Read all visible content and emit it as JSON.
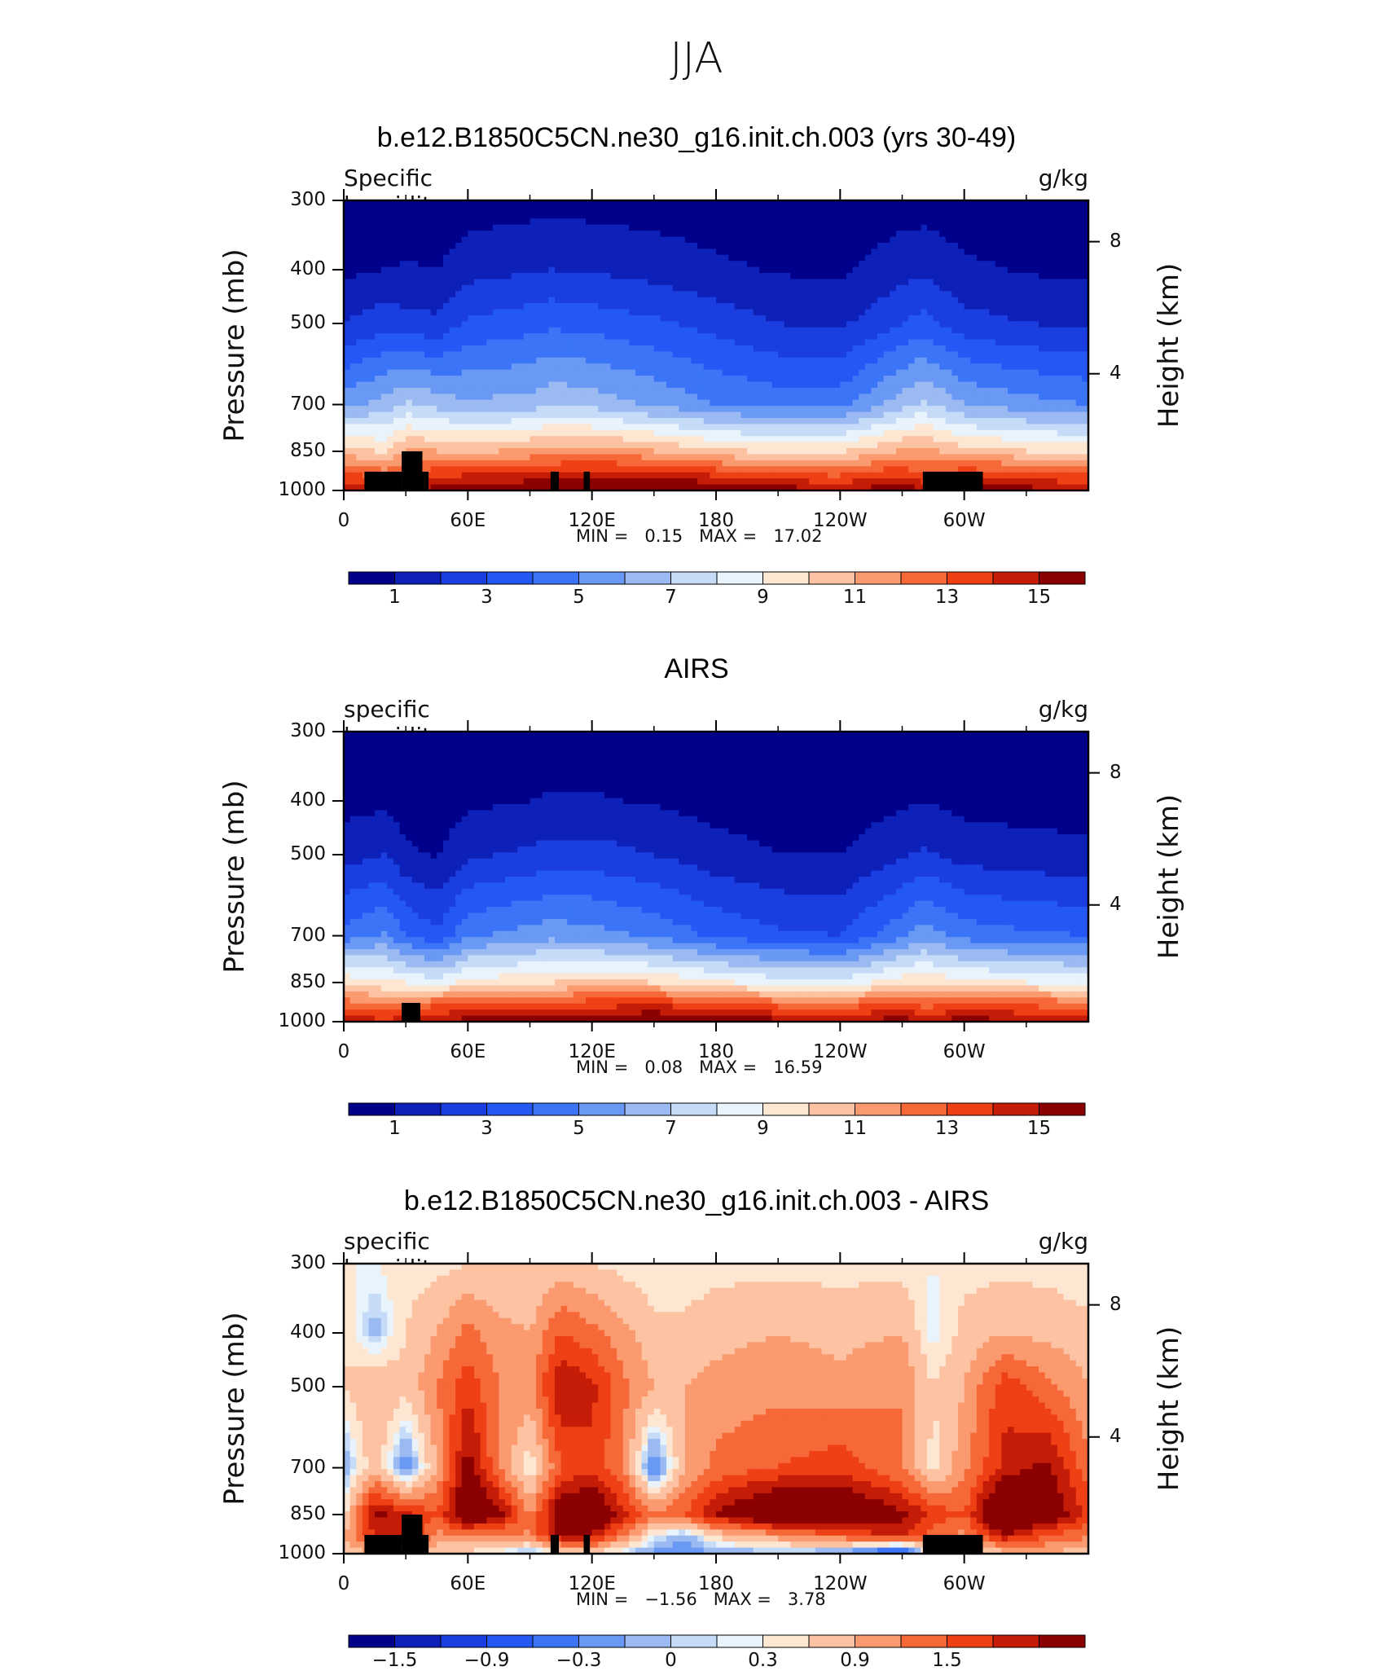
{
  "figure": {
    "title": "JJA"
  },
  "chart_data": [
    {
      "type": "heatmap",
      "title": "b.e12.B1850C5CN.ne30_g16.init.ch.003 (yrs 30-49)",
      "variable_label": "Specific humidity",
      "units": "g/kg",
      "ylabel": "Pressure (mb)",
      "ylabel_right": "Height (km)",
      "x_ticks": [
        "0",
        "60E",
        "120E",
        "180",
        "120W",
        "60W"
      ],
      "x_range": [
        0,
        360
      ],
      "y_ticks": [
        "300",
        "400",
        "500",
        "700",
        "850",
        "1000"
      ],
      "y_range": [
        1000,
        300
      ],
      "height_ticks": [
        "8",
        "4"
      ],
      "min_label": "MIN =",
      "min_value": "0.15",
      "max_label": "MAX =",
      "max_value": "17.02",
      "colorbar_labels": [
        "1",
        "3",
        "5",
        "7",
        "9",
        "11",
        "13",
        "15"
      ],
      "levels": [
        1,
        2,
        3,
        4,
        5,
        6,
        7,
        8,
        9,
        10,
        11,
        12,
        13,
        14,
        15
      ],
      "colors": [
        "#00008b",
        "#0d20b8",
        "#1a3ee0",
        "#2458f5",
        "#3b74f7",
        "#6a98f5",
        "#9bbaf2",
        "#c6dbf8",
        "#e8f3fc",
        "#fde6d2",
        "#fcc2a2",
        "#fa9a6e",
        "#f76838",
        "#ef3f14",
        "#c51c08",
        "#8b0000"
      ],
      "field": {
        "lon": [
          0,
          20,
          30,
          45,
          60,
          90,
          100,
          120,
          150,
          180,
          210,
          240,
          270,
          280,
          300,
          330,
          360
        ],
        "rows": [
          {
            "p": 1000,
            "q": [
              15.0,
              14.6,
              14.8,
              15.4,
              15.8,
              16.2,
              16.3,
              16.4,
              16.6,
              16.2,
              15.6,
              15.2,
              15.6,
              15.2,
              16.0,
              15.4,
              14.6
            ]
          },
          {
            "p": 925,
            "q": [
              12.8,
              12.2,
              12.8,
              13.4,
              13.6,
              13.8,
              13.9,
              14.2,
              14.1,
              13.4,
              12.6,
              12.4,
              13.6,
              12.6,
              13.4,
              13.2,
              12.6
            ]
          },
          {
            "p": 850,
            "q": [
              10.6,
              9.8,
              11.2,
              11.0,
              10.8,
              11.2,
              11.6,
              11.6,
              11.0,
              10.2,
              9.8,
              9.9,
              11.2,
              11.4,
              10.4,
              10.0,
              9.6
            ]
          },
          {
            "p": 700,
            "q": [
              5.6,
              6.4,
              7.2,
              6.6,
              6.2,
              6.4,
              6.8,
              6.6,
              5.8,
              5.0,
              4.6,
              4.6,
              6.6,
              7.2,
              6.0,
              5.4,
              5.0
            ]
          },
          {
            "p": 500,
            "q": [
              2.0,
              2.6,
              2.4,
              2.2,
              3.2,
              3.6,
              3.8,
              3.6,
              3.2,
              2.6,
              2.0,
              1.8,
              3.0,
              3.4,
              2.4,
              2.0,
              1.8
            ]
          },
          {
            "p": 400,
            "q": [
              0.8,
              1.0,
              1.1,
              1.0,
              1.6,
              1.9,
              2.0,
              1.9,
              1.6,
              1.2,
              0.9,
              0.8,
              1.6,
              1.8,
              1.2,
              0.9,
              0.8
            ]
          },
          {
            "p": 300,
            "q": [
              0.3,
              0.3,
              0.3,
              0.3,
              0.5,
              0.6,
              0.6,
              0.6,
              0.5,
              0.4,
              0.3,
              0.3,
              0.5,
              0.5,
              0.4,
              0.3,
              0.3
            ]
          }
        ]
      },
      "topography": [
        {
          "lon0": 10,
          "lon1": 28,
          "p_top": 925
        },
        {
          "lon0": 28,
          "lon1": 38,
          "p_top": 850
        },
        {
          "lon0": 38,
          "lon1": 41,
          "p_top": 925
        },
        {
          "lon0": 100,
          "lon1": 104,
          "p_top": 925
        },
        {
          "lon0": 116,
          "lon1": 119,
          "p_top": 925
        },
        {
          "lon0": 280,
          "lon1": 309,
          "p_top": 925
        }
      ]
    },
    {
      "type": "heatmap",
      "title": "AIRS",
      "variable_label": "specific humidity",
      "units": "g/kg",
      "ylabel": "Pressure (mb)",
      "ylabel_right": "Height (km)",
      "x_ticks": [
        "0",
        "60E",
        "120E",
        "180",
        "120W",
        "60W"
      ],
      "x_range": [
        0,
        360
      ],
      "y_ticks": [
        "300",
        "400",
        "500",
        "700",
        "850",
        "1000"
      ],
      "y_range": [
        1000,
        300
      ],
      "height_ticks": [
        "8",
        "4"
      ],
      "min_label": "MIN =",
      "min_value": "0.08",
      "max_label": "MAX =",
      "max_value": "16.59",
      "colorbar_labels": [
        "1",
        "3",
        "5",
        "7",
        "9",
        "11",
        "13",
        "15"
      ],
      "levels": [
        1,
        2,
        3,
        4,
        5,
        6,
        7,
        8,
        9,
        10,
        11,
        12,
        13,
        14,
        15
      ],
      "colors": [
        "#00008b",
        "#0d20b8",
        "#1a3ee0",
        "#2458f5",
        "#3b74f7",
        "#6a98f5",
        "#9bbaf2",
        "#c6dbf8",
        "#e8f3fc",
        "#fde6d2",
        "#fcc2a2",
        "#fa9a6e",
        "#f76838",
        "#ef3f14",
        "#c51c08",
        "#8b0000"
      ],
      "field": {
        "lon": [
          0,
          20,
          30,
          45,
          60,
          90,
          100,
          120,
          150,
          180,
          210,
          240,
          270,
          280,
          300,
          330,
          360
        ],
        "rows": [
          {
            "p": 1000,
            "q": [
              14.8,
              14.2,
              14.6,
              15.0,
              15.6,
              15.8,
              16.0,
              16.0,
              16.4,
              16.0,
              15.4,
              15.0,
              15.6,
              15.0,
              15.6,
              15.2,
              14.6
            ]
          },
          {
            "p": 925,
            "q": [
              12.4,
              11.8,
              12.0,
              12.6,
              12.8,
              13.0,
              13.2,
              13.4,
              13.6,
              13.0,
              12.4,
              12.2,
              13.0,
              12.4,
              12.8,
              12.6,
              12.2
            ]
          },
          {
            "p": 850,
            "q": [
              9.8,
              9.2,
              9.0,
              8.4,
              9.4,
              9.8,
              10.0,
              10.2,
              10.0,
              9.2,
              8.6,
              8.4,
              9.6,
              9.8,
              9.4,
              9.0,
              8.8
            ]
          },
          {
            "p": 700,
            "q": [
              4.4,
              5.2,
              4.0,
              3.2,
              4.8,
              5.4,
              5.6,
              5.4,
              4.8,
              3.8,
              3.2,
              3.0,
              4.8,
              5.6,
              4.6,
              4.2,
              4.0
            ]
          },
          {
            "p": 500,
            "q": [
              1.6,
              2.0,
              1.2,
              0.9,
              1.8,
              2.2,
              2.4,
              2.4,
              2.0,
              1.4,
              1.0,
              1.0,
              1.8,
              2.2,
              1.6,
              1.4,
              1.2
            ]
          },
          {
            "p": 400,
            "q": [
              0.6,
              0.8,
              0.5,
              0.4,
              0.8,
              1.0,
              1.1,
              1.1,
              0.9,
              0.6,
              0.5,
              0.5,
              0.8,
              1.0,
              0.7,
              0.6,
              0.6
            ]
          },
          {
            "p": 300,
            "q": [
              0.2,
              0.2,
              0.2,
              0.1,
              0.3,
              0.3,
              0.4,
              0.4,
              0.3,
              0.2,
              0.2,
              0.2,
              0.3,
              0.3,
              0.2,
              0.2,
              0.2
            ]
          }
        ]
      },
      "topography": [
        {
          "lon0": 28,
          "lon1": 37,
          "p_top": 925
        }
      ]
    },
    {
      "type": "heatmap",
      "title": "b.e12.B1850C5CN.ne30_g16.init.ch.003 - AIRS",
      "variable_label": "specific humidity",
      "units": "g/kg",
      "ylabel": "Pressure (mb)",
      "ylabel_right": "Height (km)",
      "x_ticks": [
        "0",
        "60E",
        "120E",
        "180",
        "120W",
        "60W"
      ],
      "x_range": [
        0,
        360
      ],
      "y_ticks": [
        "300",
        "400",
        "500",
        "700",
        "850",
        "1000"
      ],
      "y_range": [
        1000,
        300
      ],
      "height_ticks": [
        "8",
        "4"
      ],
      "min_label": "MIN =",
      "min_value": "−1.56",
      "max_label": "MAX =",
      "max_value": "3.78",
      "colorbar_labels": [
        "−1.5",
        "−0.9",
        "−0.3",
        "0",
        "0.3",
        "0.9",
        "1.5"
      ],
      "levels": [
        -1.8,
        -1.5,
        -1.2,
        -0.9,
        -0.6,
        -0.3,
        -0.1,
        0,
        0.1,
        0.3,
        0.6,
        0.9,
        1.2,
        1.5,
        1.8
      ],
      "colors": [
        "#00008b",
        "#0d20b8",
        "#1a3ee0",
        "#2458f5",
        "#3b74f7",
        "#6a98f5",
        "#9bbaf2",
        "#c6dbf8",
        "#e8f3fc",
        "#fde6d2",
        "#fcc2a2",
        "#fa9a6e",
        "#f76838",
        "#ef3f14",
        "#c51c08",
        "#8b0000"
      ],
      "field": {
        "lon": [
          0,
          15,
          30,
          45,
          60,
          75,
          90,
          105,
          120,
          135,
          150,
          165,
          180,
          210,
          240,
          270,
          285,
          300,
          320,
          340,
          360
        ],
        "rows": [
          {
            "p": 1000,
            "q": [
              0.4,
              0.6,
              0.8,
              0.3,
              0.2,
              0.0,
              -0.3,
              0.1,
              0.2,
              -0.1,
              -0.4,
              -0.6,
              -0.3,
              -0.2,
              -0.4,
              -1.4,
              0.6,
              -0.1,
              0.4,
              0.6,
              0.3
            ]
          },
          {
            "p": 925,
            "q": [
              0.6,
              1.5,
              1.8,
              0.8,
              1.0,
              0.8,
              0.9,
              1.9,
              1.8,
              1.0,
              0.1,
              -0.2,
              0.4,
              0.8,
              1.2,
              1.6,
              1.0,
              0.8,
              1.8,
              1.2,
              1.0
            ]
          },
          {
            "p": 850,
            "q": [
              0.2,
              1.9,
              1.6,
              1.2,
              2.4,
              2.0,
              0.8,
              2.2,
              2.4,
              1.6,
              1.0,
              1.2,
              1.8,
              2.6,
              2.4,
              1.9,
              1.4,
              1.2,
              2.8,
              2.2,
              1.4
            ]
          },
          {
            "p": 700,
            "q": [
              -0.3,
              0.5,
              -0.5,
              0.6,
              2.0,
              0.9,
              0.1,
              1.2,
              1.4,
              0.9,
              -0.6,
              0.6,
              1.0,
              1.2,
              1.4,
              0.9,
              0.2,
              0.8,
              1.6,
              1.9,
              1.0
            ]
          },
          {
            "p": 500,
            "q": [
              0.3,
              0.6,
              0.4,
              0.9,
              1.4,
              0.9,
              0.8,
              1.8,
              1.6,
              1.0,
              0.6,
              0.6,
              0.7,
              0.8,
              0.7,
              0.9,
              0.3,
              0.6,
              1.4,
              1.0,
              0.6
            ]
          },
          {
            "p": 400,
            "q": [
              0.3,
              -0.2,
              0.3,
              0.6,
              1.0,
              0.7,
              0.6,
              1.2,
              1.0,
              0.7,
              0.4,
              0.4,
              0.5,
              0.6,
              0.5,
              0.6,
              0.0,
              0.4,
              0.6,
              0.5,
              0.4
            ]
          },
          {
            "p": 300,
            "q": [
              0.1,
              0.1,
              0.2,
              0.2,
              0.3,
              0.3,
              0.3,
              0.4,
              0.3,
              0.2,
              0.1,
              0.1,
              0.2,
              0.2,
              0.2,
              0.2,
              0.1,
              0.2,
              0.2,
              0.2,
              0.1
            ]
          }
        ]
      },
      "topography": [
        {
          "lon0": 10,
          "lon1": 28,
          "p_top": 925
        },
        {
          "lon0": 28,
          "lon1": 38,
          "p_top": 850
        },
        {
          "lon0": 38,
          "lon1": 41,
          "p_top": 925
        },
        {
          "lon0": 100,
          "lon1": 104,
          "p_top": 925
        },
        {
          "lon0": 116,
          "lon1": 119,
          "p_top": 925
        },
        {
          "lon0": 280,
          "lon1": 309,
          "p_top": 925
        }
      ]
    }
  ]
}
